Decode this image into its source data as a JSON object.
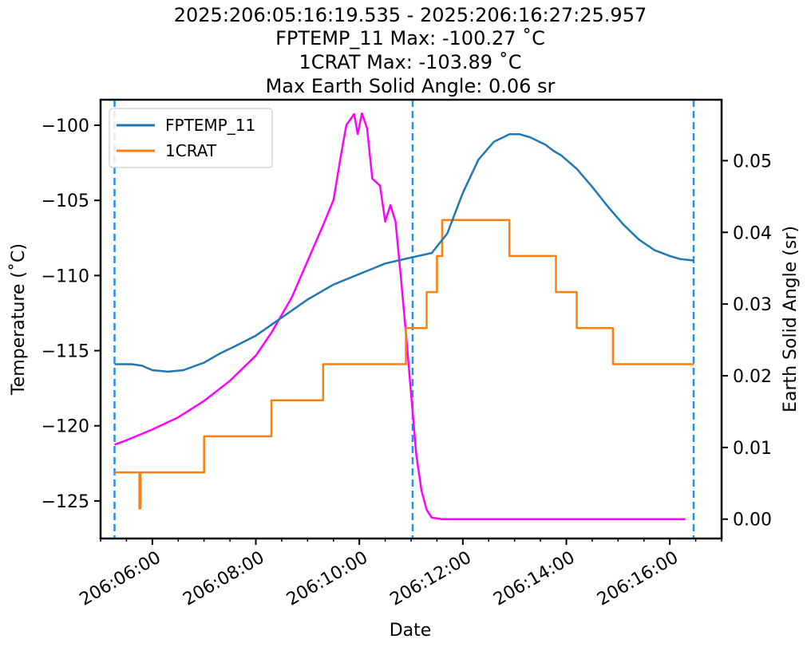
{
  "chart_data": {
    "type": "line",
    "title_lines": [
      "2025:206:05:16:19.535 - 2025:206:16:27:25.957",
      "FPTEMP_11 Max: -100.27 ˚C",
      "1CRAT Max: -103.89 ˚C",
      "Max Earth Solid Angle: 0.06 sr"
    ],
    "xlabel": "Date",
    "ylabel": "Temperature (˚C)",
    "y2label": "Earth Solid Angle (sr)",
    "x_unit": "hours of day 206",
    "xlim": [
      5.0,
      17.0
    ],
    "ylim": [
      -127.5,
      -98.3
    ],
    "y2lim": [
      -0.0027,
      0.0585
    ],
    "x_ticks": [
      {
        "value": 6,
        "label": "206:06:00"
      },
      {
        "value": 8,
        "label": "206:08:00"
      },
      {
        "value": 10,
        "label": "206:10:00"
      },
      {
        "value": 12,
        "label": "206:12:00"
      },
      {
        "value": 14,
        "label": "206:14:00"
      },
      {
        "value": 16,
        "label": "206:16:00"
      }
    ],
    "y_ticks": [
      {
        "value": -100,
        "label": "−100"
      },
      {
        "value": -105,
        "label": "−105"
      },
      {
        "value": -110,
        "label": "−110"
      },
      {
        "value": -115,
        "label": "−115"
      },
      {
        "value": -120,
        "label": "−120"
      },
      {
        "value": -125,
        "label": "−125"
      }
    ],
    "y2_ticks": [
      {
        "value": 0.05,
        "label": "0.05"
      },
      {
        "value": 0.04,
        "label": "0.04"
      },
      {
        "value": 0.03,
        "label": "0.03"
      },
      {
        "value": 0.02,
        "label": "0.02"
      },
      {
        "value": 0.01,
        "label": "0.01"
      },
      {
        "value": 0.0,
        "label": "0.00"
      }
    ],
    "legend_position": "upper-left",
    "vlines": [
      {
        "x": 5.27,
        "color": "#1e90ff"
      },
      {
        "x": 11.03,
        "color": "#1e90ff"
      },
      {
        "x": 16.46,
        "color": "#1e90ff"
      }
    ],
    "series": [
      {
        "name": "FPTEMP_11",
        "color": "#1f77b4",
        "axis": "left",
        "x": [
          5.27,
          5.6,
          5.8,
          6.0,
          6.3,
          6.6,
          7.0,
          7.3,
          7.6,
          8.0,
          8.5,
          9.0,
          9.5,
          10.0,
          10.5,
          11.0,
          11.4,
          11.7,
          12.0,
          12.3,
          12.6,
          12.9,
          13.1,
          13.3,
          13.6,
          13.75,
          13.9,
          14.2,
          14.5,
          14.8,
          15.1,
          15.4,
          15.7,
          16.0,
          16.2,
          16.46
        ],
        "y": [
          -115.9,
          -115.9,
          -116.0,
          -116.3,
          -116.4,
          -116.3,
          -115.8,
          -115.2,
          -114.7,
          -114.0,
          -112.8,
          -111.6,
          -110.6,
          -109.9,
          -109.2,
          -108.8,
          -108.5,
          -107.2,
          -104.5,
          -102.3,
          -101.1,
          -100.6,
          -100.6,
          -100.8,
          -101.3,
          -101.7,
          -102.0,
          -102.9,
          -104.1,
          -105.4,
          -106.6,
          -107.6,
          -108.3,
          -108.7,
          -108.9,
          -109.0
        ]
      },
      {
        "name": "1CRAT",
        "color": "#ff7f0e",
        "axis": "left",
        "x": [
          5.27,
          5.75,
          5.75,
          5.77,
          5.77,
          7.0,
          7.0,
          8.3,
          8.3,
          9.3,
          9.3,
          10.9,
          10.9,
          11.3,
          11.3,
          11.5,
          11.5,
          11.6,
          11.6,
          12.2,
          12.2,
          12.9,
          12.9,
          13.8,
          13.8,
          14.2,
          14.2,
          14.9,
          14.9,
          16.46
        ],
        "y": [
          -123.1,
          -123.1,
          -125.5,
          -125.5,
          -123.1,
          -123.1,
          -120.7,
          -120.7,
          -118.3,
          -118.3,
          -115.9,
          -115.9,
          -113.5,
          -113.5,
          -111.1,
          -111.1,
          -108.7,
          -108.7,
          -106.3,
          -106.3,
          -106.3,
          -106.3,
          -108.7,
          -108.7,
          -111.1,
          -111.1,
          -113.5,
          -113.5,
          -115.9,
          -115.9
        ]
      },
      {
        "name": "Earth Solid Angle",
        "color": "#ff00ff",
        "axis": "right",
        "x": [
          5.27,
          5.5,
          6.0,
          6.5,
          7.0,
          7.5,
          8.0,
          8.3,
          8.7,
          9.0,
          9.3,
          9.5,
          9.65,
          9.75,
          9.9,
          9.97,
          10.05,
          10.15,
          10.25,
          10.4,
          10.5,
          10.6,
          10.7,
          10.8,
          10.9,
          11.0,
          11.1,
          11.2,
          11.3,
          11.4,
          11.6,
          12.5,
          14.0,
          15.0,
          16.0,
          16.3
        ],
        "y": [
          0.0104,
          0.011,
          0.0125,
          0.0142,
          0.0165,
          0.0193,
          0.0228,
          0.026,
          0.031,
          0.036,
          0.041,
          0.0445,
          0.051,
          0.055,
          0.0565,
          0.0537,
          0.0566,
          0.0545,
          0.0475,
          0.0465,
          0.0415,
          0.0438,
          0.0415,
          0.034,
          0.026,
          0.0175,
          0.009,
          0.004,
          0.0013,
          0.0002,
          0.0,
          0.0,
          0.0,
          0.0,
          0.0,
          0.0
        ]
      }
    ]
  }
}
